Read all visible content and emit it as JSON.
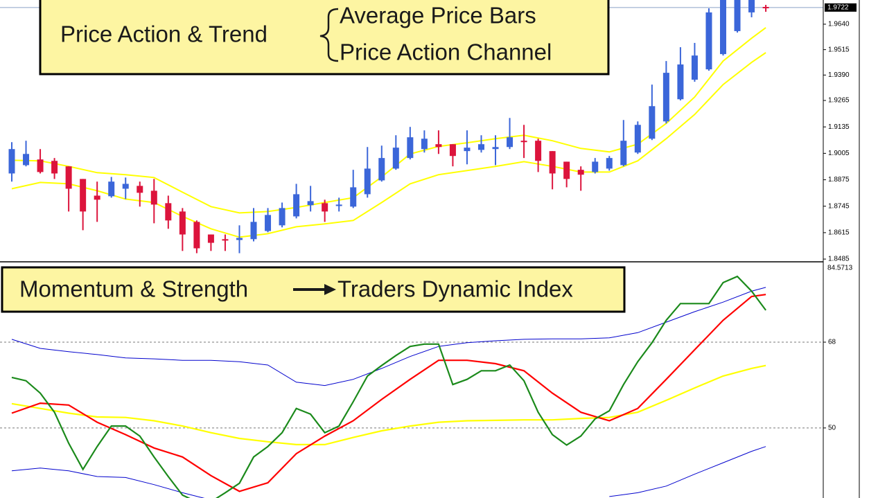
{
  "chart_data": [
    {
      "type": "candlestick",
      "up_color": "#3b66d9",
      "down_color": "#dc143c",
      "open": [
        1.8906,
        1.8947,
        1.8975,
        1.8968,
        1.8941,
        1.8879,
        1.8797,
        1.8794,
        1.8831,
        1.8845,
        1.8821,
        1.876,
        1.8719,
        1.8668,
        1.8606,
        1.8583,
        1.8579,
        1.8583,
        1.8623,
        1.8651,
        1.8695,
        1.875,
        1.876,
        1.8746,
        1.8743,
        1.8804,
        1.8872,
        1.893,
        1.8982,
        1.9026,
        1.905,
        1.905,
        1.9016,
        1.9022,
        1.9026,
        1.9036,
        1.9067,
        1.9067,
        1.9016,
        1.8964,
        1.8924,
        1.8913,
        1.893,
        1.8947,
        1.9009,
        1.9077,
        1.9162,
        1.9271,
        1.9367,
        1.9418,
        1.9493,
        1.9606,
        1.9698,
        1.9725
      ],
      "high": [
        1.906,
        1.9067,
        1.9026,
        1.8982,
        1.8941,
        1.8879,
        1.8866,
        1.8889,
        1.8886,
        1.8866,
        1.8879,
        1.8797,
        1.8736,
        1.8675,
        1.8606,
        1.8606,
        1.8651,
        1.8736,
        1.8736,
        1.8763,
        1.8855,
        1.8845,
        1.8777,
        1.8787,
        1.8924,
        1.9036,
        1.9043,
        1.9094,
        1.9135,
        1.9118,
        1.9118,
        1.905,
        1.9118,
        1.9094,
        1.9094,
        1.9179,
        1.9145,
        1.9077,
        1.9016,
        1.8964,
        1.8941,
        1.8982,
        1.8992,
        1.9169,
        1.9162,
        1.9343,
        1.9459,
        1.9527,
        1.9548,
        1.9718,
        1.98,
        1.983,
        1.98,
        1.9735
      ],
      "low": [
        1.8866,
        1.8941,
        1.8906,
        1.8879,
        1.8719,
        1.8627,
        1.8668,
        1.8787,
        1.878,
        1.8743,
        1.8661,
        1.8634,
        1.8525,
        1.8514,
        1.8525,
        1.8525,
        1.8514,
        1.8572,
        1.8617,
        1.8641,
        1.8685,
        1.8719,
        1.8668,
        1.8719,
        1.8736,
        1.8787,
        1.8866,
        1.8924,
        1.8975,
        1.9009,
        1.9002,
        1.8941,
        1.8951,
        1.9009,
        1.8947,
        1.9026,
        1.8982,
        1.8913,
        1.8828,
        1.8838,
        1.8821,
        1.8906,
        1.892,
        1.8941,
        1.9002,
        1.907,
        1.9152,
        1.9265,
        1.9357,
        1.9411,
        1.9486,
        1.9599,
        1.9674,
        1.9701
      ],
      "close": [
        1.9026,
        1.9002,
        1.8913,
        1.8906,
        1.8831,
        1.8719,
        1.8777,
        1.8866,
        1.8855,
        1.8811,
        1.8753,
        1.8675,
        1.8606,
        1.8538,
        1.8565,
        1.8576,
        1.8589,
        1.8668,
        1.8702,
        1.8736,
        1.8804,
        1.877,
        1.8719,
        1.8753,
        1.8838,
        1.893,
        1.8982,
        1.9033,
        1.9084,
        1.9077,
        1.9036,
        1.8992,
        1.9033,
        1.905,
        1.9036,
        1.9084,
        1.906,
        1.8968,
        1.8906,
        1.8879,
        1.89,
        1.8964,
        1.8982,
        1.9067,
        1.9145,
        1.9237,
        1.9401,
        1.9442,
        1.9486,
        1.9698,
        1.978,
        1.979,
        1.9775,
        1.9722
      ],
      "series": [
        {
          "color": "#ffff00",
          "x": [
            0,
            2,
            4,
            6,
            8,
            10,
            12,
            14,
            16,
            18,
            20,
            22,
            24,
            26,
            28,
            30,
            32,
            34,
            36,
            38,
            40,
            42,
            44,
            46,
            48,
            50,
            52,
            53
          ],
          "values": [
            1.8971,
            1.8968,
            1.8941,
            1.891,
            1.89,
            1.8886,
            1.8814,
            1.8743,
            1.8712,
            1.8719,
            1.8739,
            1.8763,
            1.8787,
            1.8889,
            1.9002,
            1.9039,
            1.9057,
            1.9077,
            1.9094,
            1.9067,
            1.9029,
            1.9012,
            1.905,
            1.9152,
            1.9282,
            1.9459,
            1.9571,
            1.9623
          ]
        },
        {
          "color": "#ffff00",
          "x": [
            0,
            2,
            4,
            6,
            8,
            10,
            12,
            14,
            16,
            18,
            20,
            22,
            24,
            26,
            28,
            30,
            32,
            34,
            36,
            38,
            40,
            42,
            44,
            46,
            48,
            50,
            52,
            53
          ],
          "values": [
            1.8831,
            1.8862,
            1.8855,
            1.8821,
            1.878,
            1.8763,
            1.8695,
            1.8634,
            1.8593,
            1.861,
            1.8644,
            1.8658,
            1.8675,
            1.8763,
            1.8855,
            1.89,
            1.892,
            1.8941,
            1.8964,
            1.8941,
            1.8913,
            1.8913,
            1.8968,
            1.9077,
            1.9196,
            1.9343,
            1.9452,
            1.95
          ]
        }
      ],
      "ylim": [
        1.8475,
        1.9759
      ],
      "yticks": [
        {
          "value": 1.964,
          "label": "1.9640"
        },
        1.9515,
        {
          "value": 1.939,
          "label": "1.9390"
        },
        1.9265,
        1.9135,
        1.9005,
        1.8875,
        1.8745,
        1.8615,
        1.8485
      ],
      "last_price": 1.9722,
      "annotation": {
        "left": "Price Action & Trend",
        "items": [
          "Average Price Bars",
          "Price Action Channel"
        ]
      }
    },
    {
      "type": "line",
      "series": [
        {
          "color": "#0000cd",
          "x": [
            0,
            2,
            4,
            6,
            8,
            10,
            12,
            14,
            16,
            18,
            20,
            22,
            24,
            26,
            28,
            30,
            32,
            34,
            36,
            38,
            40,
            42,
            44,
            46,
            48,
            50,
            52,
            53
          ],
          "values": [
            68.6,
            66.7,
            66.0,
            65.4,
            64.7,
            64.5,
            64.2,
            64.2,
            63.9,
            63.2,
            59.6,
            58.9,
            60.2,
            62.5,
            65.0,
            67.1,
            67.9,
            68.3,
            68.6,
            68.7,
            68.7,
            68.9,
            70.0,
            72.2,
            74.4,
            76.4,
            78.7,
            79.5
          ]
        },
        {
          "color": "#0000cd",
          "x": [
            0,
            2,
            4,
            6,
            8,
            10,
            12,
            14,
            16,
            18,
            20,
            22,
            24,
            26,
            28,
            30,
            32,
            34,
            36,
            38,
            40,
            42,
            44,
            46,
            48,
            50,
            52,
            53
          ],
          "values": [
            41.0,
            41.6,
            41.0,
            39.8,
            39.6,
            38.1,
            36.4,
            34.9,
            null,
            null,
            null,
            null,
            null,
            null,
            null,
            null,
            null,
            null,
            null,
            null,
            null,
            35.6,
            36.4,
            37.8,
            40.3,
            42.7,
            45.1,
            46.1
          ]
        },
        {
          "color": "#ffff00",
          "x": [
            0,
            2,
            4,
            6,
            8,
            10,
            12,
            14,
            16,
            18,
            20,
            22,
            24,
            26,
            28,
            30,
            32,
            34,
            36,
            38,
            40,
            42,
            44,
            46,
            48,
            50,
            52,
            53
          ],
          "values": [
            55.1,
            54.1,
            53.1,
            52.3,
            52.2,
            51.5,
            50.4,
            49.0,
            47.8,
            47.1,
            46.5,
            46.5,
            48.0,
            49.4,
            50.4,
            51.2,
            51.5,
            51.6,
            51.7,
            51.7,
            52.0,
            52.2,
            53.3,
            55.8,
            58.4,
            60.9,
            62.5,
            63.1
          ]
        },
        {
          "color": "#ff0000",
          "x": [
            0,
            2,
            4,
            6,
            8,
            10,
            12,
            14,
            16,
            18,
            20,
            22,
            24,
            26,
            28,
            30,
            32,
            34,
            36,
            38,
            40,
            42,
            44,
            46,
            48,
            50,
            52,
            53
          ],
          "values": [
            53.1,
            55.2,
            54.8,
            51.2,
            48.6,
            45.8,
            43.9,
            40.0,
            36.7,
            38.5,
            44.6,
            48.3,
            51.5,
            56.0,
            60.2,
            64.2,
            64.2,
            63.5,
            62.0,
            57.3,
            53.3,
            51.5,
            54.1,
            60.2,
            66.4,
            72.6,
            77.6,
            78.0
          ]
        },
        {
          "color": "#1b8a1b",
          "x": [
            0,
            1,
            2,
            3,
            4,
            5,
            6,
            7,
            8,
            9,
            10,
            11,
            12,
            13,
            14,
            15,
            16,
            17,
            18,
            19,
            20,
            21,
            22,
            23,
            24,
            25,
            26,
            27,
            28,
            29,
            30,
            31,
            32,
            33,
            34,
            35,
            36,
            37,
            38,
            39,
            40,
            41,
            42,
            43,
            44,
            45,
            46,
            47,
            48,
            49,
            50,
            51,
            52,
            53
          ],
          "values": [
            60.6,
            59.9,
            57.3,
            53.3,
            46.8,
            41.3,
            46.1,
            50.4,
            50.4,
            48.3,
            43.9,
            39.8,
            35.9,
            34.5,
            34.5,
            36.4,
            38.4,
            43.9,
            46.1,
            49.0,
            54.1,
            52.9,
            49.0,
            50.4,
            55.5,
            60.9,
            63.1,
            65.2,
            67.1,
            67.6,
            67.6,
            59.1,
            60.2,
            62.0,
            62.0,
            63.2,
            59.9,
            53.3,
            48.6,
            46.4,
            48.3,
            51.9,
            53.6,
            59.1,
            63.9,
            67.9,
            72.6,
            76.1,
            76.1,
            76.1,
            80.5,
            81.8,
            78.7,
            74.7
          ]
        }
      ],
      "ylim": [
        35.3,
        84.5713
      ],
      "yticks": [
        68,
        50
      ],
      "annotation": {
        "left": "Momentum & Strength",
        "right": "Traders Dynamic Index"
      }
    }
  ]
}
